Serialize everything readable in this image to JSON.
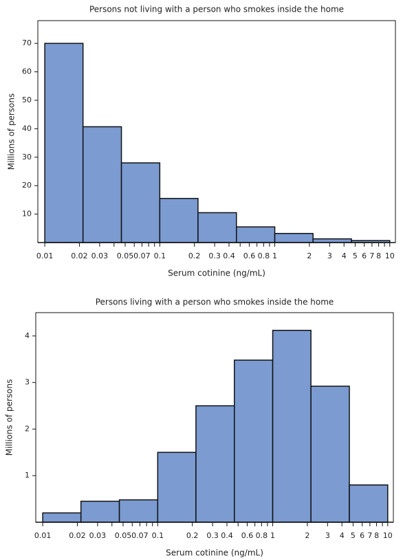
{
  "chart_data": [
    {
      "type": "histogram",
      "title": "Persons not living with a person who smokes inside the home",
      "xlabel": "Serum cotinine (ng/mL)",
      "ylabel": "Millions of persons",
      "bins": [
        0.01,
        0.0215,
        0.0464,
        0.1,
        0.215,
        0.464,
        1,
        2.15,
        4.64,
        10
      ],
      "values": [
        70,
        40.7,
        28,
        15.5,
        10.5,
        5.5,
        3.2,
        1.3,
        0.7
      ],
      "color": "#7b9bd1",
      "xscale": "log",
      "xlim": [
        0.0087,
        11.2
      ],
      "ylim": [
        0,
        78
      ],
      "xticks": [
        0.01,
        0.02,
        0.03,
        0.05,
        0.07,
        0.1,
        0.2,
        0.3,
        0.4,
        0.6,
        0.8,
        1,
        2,
        3,
        4,
        5,
        6,
        7,
        8,
        10
      ],
      "xminorticks": [
        0.04,
        0.06,
        0.08,
        0.09,
        0.5,
        0.7,
        0.9,
        9
      ],
      "yticks": [
        10,
        20,
        30,
        40,
        50,
        60,
        70
      ]
    },
    {
      "type": "histogram",
      "title": "Persons living with a person who smokes inside the home",
      "xlabel": "Serum cotinine (ng/mL)",
      "ylabel": "Millions of persons",
      "bins": [
        0.01,
        0.0215,
        0.0464,
        0.1,
        0.215,
        0.464,
        1,
        2.15,
        4.64,
        10
      ],
      "values": [
        0.2,
        0.45,
        0.48,
        1.5,
        2.5,
        3.48,
        4.12,
        2.92,
        0.8
      ],
      "color": "#7b9bd1",
      "xscale": "log",
      "xlim": [
        0.0087,
        11.2
      ],
      "ylim": [
        0,
        4.5
      ],
      "xticks": [
        0.01,
        0.02,
        0.03,
        0.05,
        0.07,
        0.1,
        0.2,
        0.3,
        0.4,
        0.6,
        0.8,
        1,
        2,
        3,
        4,
        5,
        6,
        7,
        8,
        10
      ],
      "xminorticks": [
        0.04,
        0.06,
        0.08,
        0.09,
        0.5,
        0.7,
        0.9,
        9
      ],
      "yticks": [
        1,
        2,
        3,
        4
      ]
    }
  ]
}
